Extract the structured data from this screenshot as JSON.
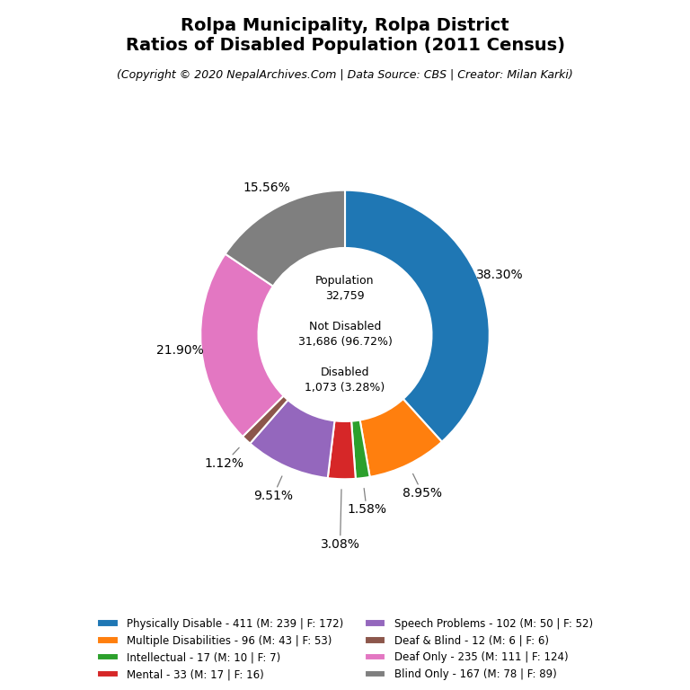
{
  "chart_data": {
    "type": "pie",
    "title": "Rolpa Municipality, Rolpa District\nRatios of Disabled Population (2011 Census)",
    "subtitle": "(Copyright © 2020 NepalArchives.Com | Data Source: CBS | Creator: Milan Karki)",
    "categories": [
      "Physically Disable - 411 (M: 239 | F: 172)",
      "Multiple Disabilities - 96 (M: 43 | F: 53)",
      "Intellectual - 17 (M: 10 | F: 7)",
      "Mental - 33 (M: 17 | F: 16)",
      "Speech Problems - 102 (M: 50 | F: 52)",
      "Deaf & Blind - 12 (M: 6 | F: 6)",
      "Deaf Only - 235 (M: 111 | F: 124)",
      "Blind Only - 167 (M: 78 | F: 89)"
    ],
    "values": [
      38.3,
      8.95,
      1.58,
      3.08,
      9.51,
      1.12,
      21.9,
      15.56
    ],
    "value_labels": [
      "38.30%",
      "8.95%",
      "1.58%",
      "3.08%",
      "9.51%",
      "1.12%",
      "21.90%",
      "15.56%"
    ],
    "data_labels": true,
    "annotations": [
      "Population\n32,759\n\nNot Disabled\n31,686 (96.72%)\n\nDisabled\n1,073 (3.28%)"
    ],
    "legend": "lower center"
  }
}
